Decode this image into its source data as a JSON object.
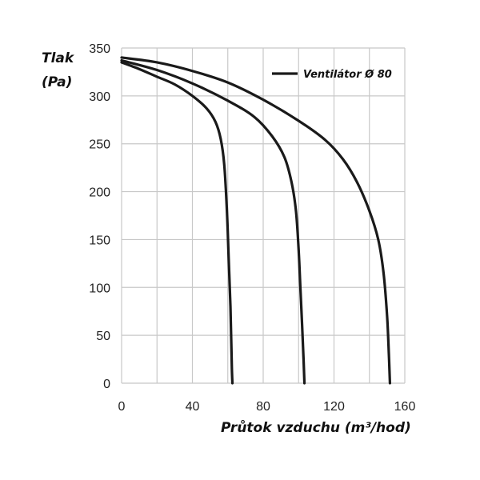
{
  "chart_data": {
    "type": "line",
    "title": "",
    "ylabel_line1": "Tlak",
    "ylabel_line2": "(Pa)",
    "xlabel": "Průtok vzduchu (m³/hod)",
    "xlim": [
      0,
      160
    ],
    "ylim": [
      0,
      350
    ],
    "xticks": [
      0,
      40,
      80,
      120,
      160
    ],
    "yticks": [
      0,
      50,
      100,
      150,
      200,
      250,
      300,
      350
    ],
    "grid": true,
    "legend": {
      "placement": "top-right",
      "entries": [
        "Ventilátor Ø 80"
      ]
    },
    "series": [
      {
        "x": [
          0,
          10,
          20,
          30,
          40,
          48,
          53,
          56,
          58,
          59.5,
          60.5,
          61.5,
          62,
          62.3,
          62.6
        ],
        "y": [
          335,
          328,
          320,
          312,
          300,
          287,
          273,
          255,
          228,
          180,
          130,
          80,
          40,
          15,
          0
        ]
      },
      {
        "x": [
          0,
          20,
          40,
          60,
          75,
          85,
          92,
          96,
          98.5,
          100,
          101,
          102,
          102.8,
          103.3
        ],
        "y": [
          337,
          327,
          313,
          295,
          278,
          258,
          236,
          210,
          180,
          140,
          100,
          60,
          25,
          0
        ]
      },
      {
        "x": [
          0,
          20,
          40,
          60,
          80,
          100,
          115,
          125,
          133,
          140,
          145,
          148,
          150,
          151,
          151.6
        ],
        "y": [
          340,
          335,
          326,
          314,
          296,
          274,
          254,
          234,
          210,
          180,
          150,
          115,
          70,
          30,
          0
        ]
      }
    ]
  }
}
